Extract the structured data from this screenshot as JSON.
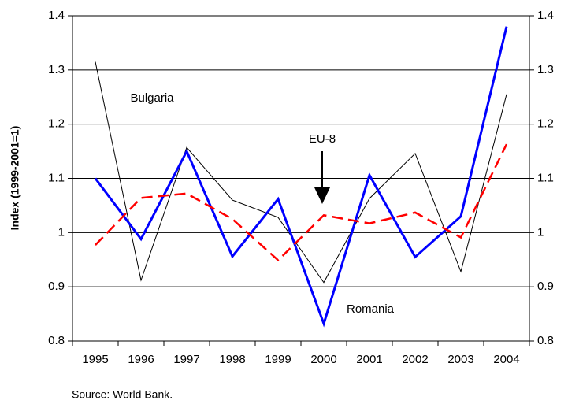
{
  "chart_data": {
    "type": "line",
    "y_label": "Index (1999-2001=1)",
    "source": "Source: World Bank.",
    "categories": [
      "1995",
      "1996",
      "1997",
      "1998",
      "1999",
      "2000",
      "2001",
      "2002",
      "2003",
      "2004"
    ],
    "series": [
      {
        "name": "Bulgaria",
        "color": "#000000",
        "line_width": 1,
        "dashed": false,
        "values": [
          1.315,
          0.912,
          1.157,
          1.06,
          1.028,
          0.908,
          1.063,
          1.146,
          0.928,
          1.255
        ]
      },
      {
        "name": "Romania",
        "color": "#0000ff",
        "line_width": 3,
        "dashed": false,
        "values": [
          1.1,
          0.988,
          1.15,
          0.956,
          1.062,
          0.832,
          1.106,
          0.955,
          1.03,
          1.38
        ]
      },
      {
        "name": "EU-8",
        "color": "#ff0000",
        "line_width": 2.5,
        "dashed": true,
        "values": [
          0.977,
          1.064,
          1.072,
          1.025,
          0.949,
          1.032,
          1.017,
          1.037,
          0.991,
          1.163
        ]
      }
    ],
    "ylim": [
      0.8,
      1.4
    ],
    "yticks": [
      0.8,
      0.9,
      1,
      1.1,
      1.2,
      1.3,
      1.4
    ],
    "y2lim": [
      0.8,
      1.4
    ],
    "y2ticks": [
      0.8,
      0.9,
      1,
      1.1,
      1.2,
      1.3,
      1.4
    ],
    "grid": true
  }
}
